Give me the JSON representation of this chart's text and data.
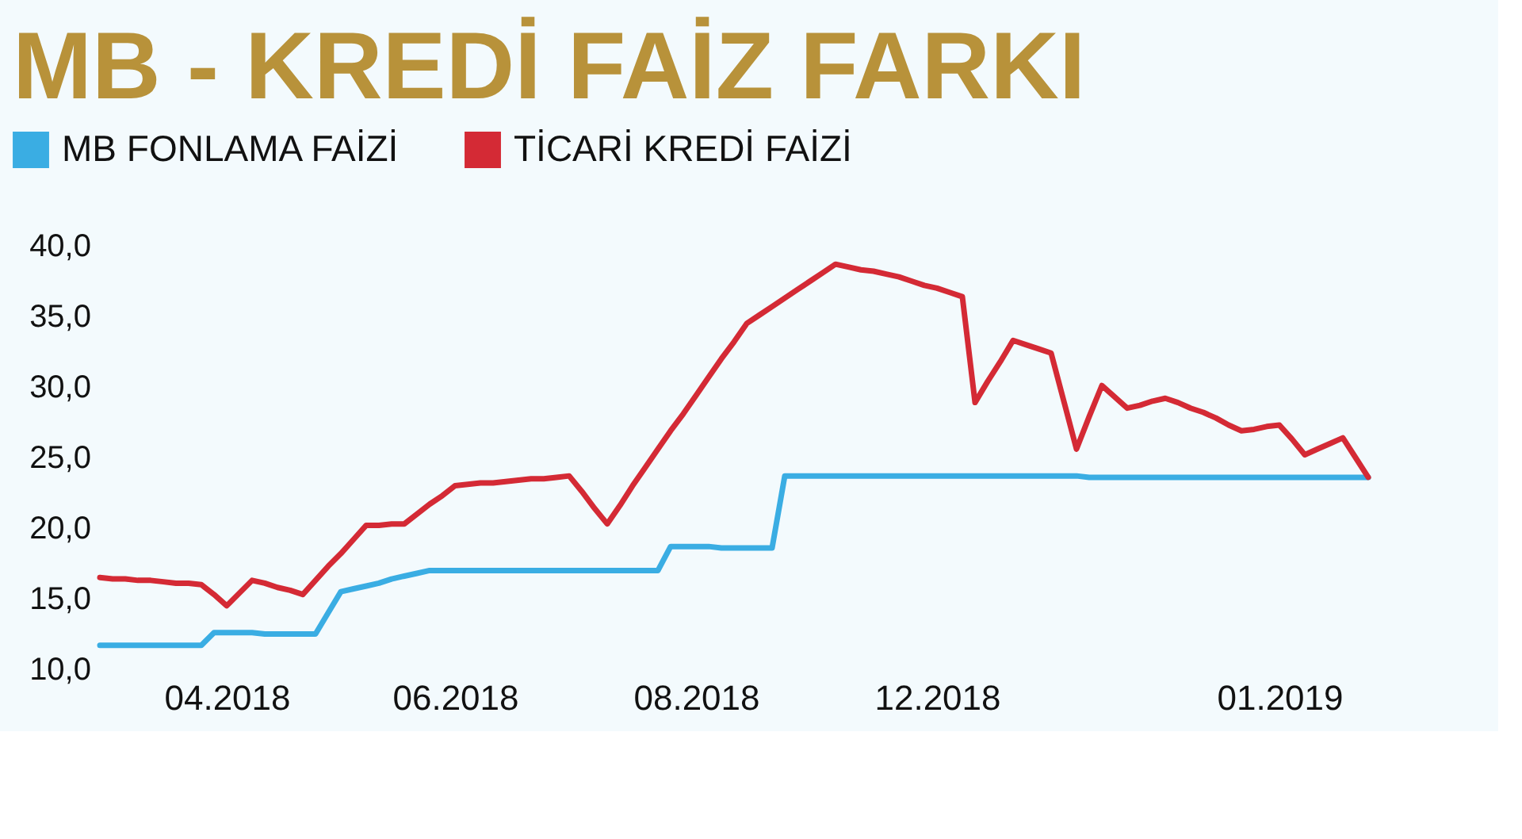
{
  "chart_data": {
    "type": "line",
    "title": "MB - KREDİ FAİZ FARKI",
    "categories": [
      null,
      null,
      null,
      null,
      null,
      null,
      null,
      null,
      null,
      null,
      "04.2018",
      null,
      null,
      null,
      null,
      null,
      null,
      null,
      null,
      null,
      null,
      null,
      null,
      null,
      null,
      null,
      null,
      null,
      "06.2018",
      null,
      null,
      null,
      null,
      null,
      null,
      null,
      null,
      null,
      null,
      null,
      null,
      null,
      null,
      null,
      null,
      null,
      null,
      "08.2018",
      null,
      null,
      null,
      null,
      null,
      null,
      null,
      null,
      null,
      null,
      null,
      null,
      null,
      null,
      null,
      null,
      null,
      null,
      "12.2018",
      null,
      null,
      null,
      null,
      null,
      null,
      null,
      null,
      null,
      null,
      null,
      null,
      null,
      null,
      null,
      null,
      null,
      null,
      null,
      null,
      null,
      null,
      null,
      null,
      null,
      null,
      "01.2019",
      null,
      null,
      null,
      null,
      null,
      null,
      null
    ],
    "ylim": [
      10,
      40
    ],
    "yticks": [
      {
        "value": 10,
        "label": "10,0"
      },
      {
        "value": 15,
        "label": "15,0"
      },
      {
        "value": 20,
        "label": "20,0"
      },
      {
        "value": 25,
        "label": "25,0"
      },
      {
        "value": 30,
        "label": "30,0"
      },
      {
        "value": 35,
        "label": "35,0"
      },
      {
        "value": 40,
        "label": "40,0"
      }
    ],
    "grid": false,
    "legend": "top left",
    "marker": "none",
    "line_style": "solid",
    "series": [
      {
        "name": "MB FONLAMA FAİZİ",
        "color": "#3aade3",
        "values": [
          11.7,
          11.7,
          11.7,
          11.7,
          11.7,
          11.7,
          11.7,
          11.7,
          11.7,
          12.6,
          12.6,
          12.6,
          12.6,
          12.5,
          12.5,
          12.5,
          12.5,
          12.5,
          14.0,
          15.5,
          15.7,
          15.9,
          16.1,
          16.4,
          16.6,
          16.8,
          17.0,
          17.0,
          17.0,
          17.0,
          17.0,
          17.0,
          17.0,
          17.0,
          17.0,
          17.0,
          17.0,
          17.0,
          17.0,
          17.0,
          17.0,
          17.0,
          17.0,
          17.0,
          17.0,
          18.7,
          18.7,
          18.7,
          18.7,
          18.6,
          18.6,
          18.6,
          18.6,
          18.6,
          23.7,
          23.7,
          23.7,
          23.7,
          23.7,
          23.7,
          23.7,
          23.7,
          23.7,
          23.7,
          23.7,
          23.7,
          23.7,
          23.7,
          23.7,
          23.7,
          23.7,
          23.7,
          23.7,
          23.7,
          23.7,
          23.7,
          23.7,
          23.7,
          23.6,
          23.6,
          23.6,
          23.6,
          23.6,
          23.6,
          23.6,
          23.6,
          23.6,
          23.6,
          23.6,
          23.6,
          23.6,
          23.6,
          23.6,
          23.6,
          23.6,
          23.6,
          23.6,
          23.6,
          23.6,
          23.6,
          23.6
        ]
      },
      {
        "name": "TİCARİ KREDİ FAİZİ",
        "color": "#d42a35",
        "values": [
          16.5,
          16.4,
          16.4,
          16.3,
          16.3,
          16.2,
          16.1,
          16.1,
          16.0,
          15.3,
          14.5,
          15.4,
          16.3,
          16.1,
          15.8,
          15.6,
          15.3,
          16.3,
          17.3,
          18.2,
          19.2,
          20.2,
          20.2,
          20.3,
          20.3,
          21.0,
          21.7,
          22.3,
          23.0,
          23.1,
          23.2,
          23.2,
          23.3,
          23.4,
          23.5,
          23.5,
          23.6,
          23.7,
          22.6,
          21.4,
          20.3,
          21.6,
          23.0,
          24.3,
          25.6,
          26.9,
          28.1,
          29.4,
          30.7,
          32.0,
          33.2,
          34.5,
          35.1,
          35.7,
          36.3,
          36.9,
          37.5,
          38.1,
          38.7,
          38.5,
          38.3,
          38.2,
          38.0,
          37.8,
          37.5,
          37.2,
          37.0,
          36.7,
          36.4,
          28.9,
          30.4,
          31.8,
          33.3,
          33.0,
          32.7,
          32.4,
          29.0,
          25.6,
          27.9,
          30.1,
          29.3,
          28.5,
          28.7,
          29.0,
          29.2,
          28.9,
          28.5,
          28.2,
          27.8,
          27.3,
          26.9,
          27.0,
          27.2,
          27.3,
          26.3,
          25.2,
          25.6,
          26.0,
          26.4,
          25.0,
          23.6
        ]
      }
    ]
  }
}
